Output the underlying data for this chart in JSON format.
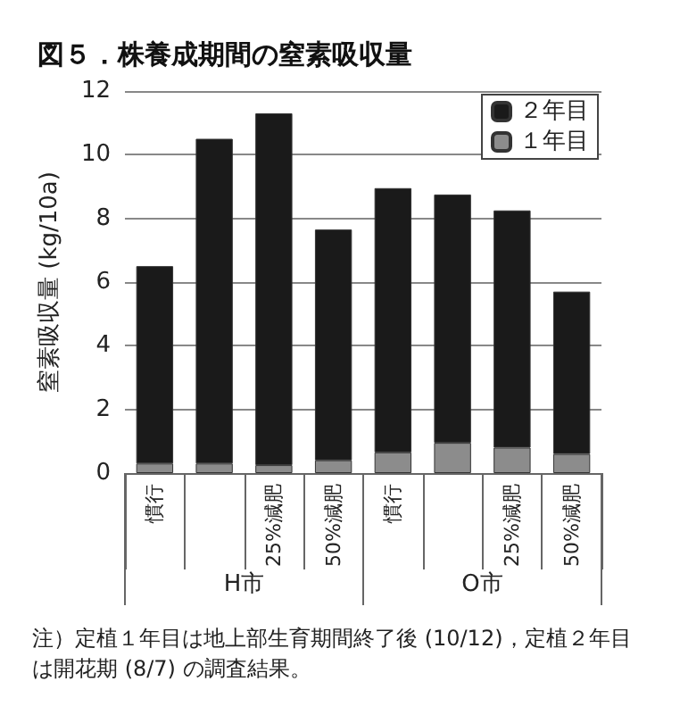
{
  "chart_data": {
    "type": "bar",
    "title": "図５．株養成期間の窒素吸収量",
    "ylabel": "窒素吸収量 (kg/10a)",
    "categories": [
      "慣行",
      null,
      "25%減肥",
      "50%減肥",
      "慣行",
      null,
      "25%減肥",
      "50%減肥"
    ],
    "stacked": true,
    "series": [
      {
        "name": "１年目",
        "color": "#8c8c8c",
        "values": [
          0.3,
          0.3,
          0.25,
          0.4,
          0.65,
          0.95,
          0.8,
          0.6
        ]
      },
      {
        "name": "２年目",
        "color": "#1a1a1a",
        "values": [
          6.2,
          10.2,
          11.05,
          7.25,
          8.3,
          7.8,
          7.45,
          5.1
        ]
      }
    ],
    "ylim": [
      0,
      12
    ],
    "yticks": [
      0,
      2,
      4,
      6,
      8,
      10,
      12
    ],
    "grid": "y",
    "legend": "top right",
    "annotations": [
      "H市",
      "O市",
      "注）定植１年目は地上部生育期間終了後 (10/12)，定植２年目は開花期 (8/7) の調査結果。"
    ]
  }
}
